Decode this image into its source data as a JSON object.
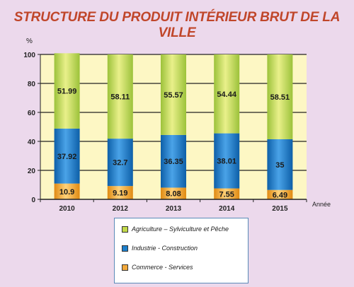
{
  "title": "STRUCTURE DU PRODUIT INTÉRIEUR BRUT DE LA VILLE",
  "chart_data": {
    "type": "bar",
    "stacked": true,
    "ylabel": "%",
    "xlabel": "Année",
    "ylim": [
      0,
      100
    ],
    "yticks": [
      0,
      20,
      40,
      60,
      80,
      100
    ],
    "grid": true,
    "legend_position": "bottom-center",
    "categories": [
      "2010",
      "2012",
      "2013",
      "2014",
      "2015"
    ],
    "series": [
      {
        "name": "Commerce - Services",
        "color": "#f2a93b",
        "values": [
          10.9,
          9.19,
          8.08,
          7.55,
          6.49
        ]
      },
      {
        "name": "Industrie - Construction",
        "color": "#1d7fcb",
        "values": [
          37.92,
          32.7,
          36.35,
          38.01,
          35
        ]
      },
      {
        "name": "Agriculture – Sylviculture et Pêche",
        "color": "#c2d94a",
        "values": [
          51.99,
          58.11,
          55.57,
          54.44,
          58.51
        ]
      }
    ],
    "legend_order": [
      2,
      1,
      0
    ],
    "plot_background": "#fdf7c4"
  }
}
